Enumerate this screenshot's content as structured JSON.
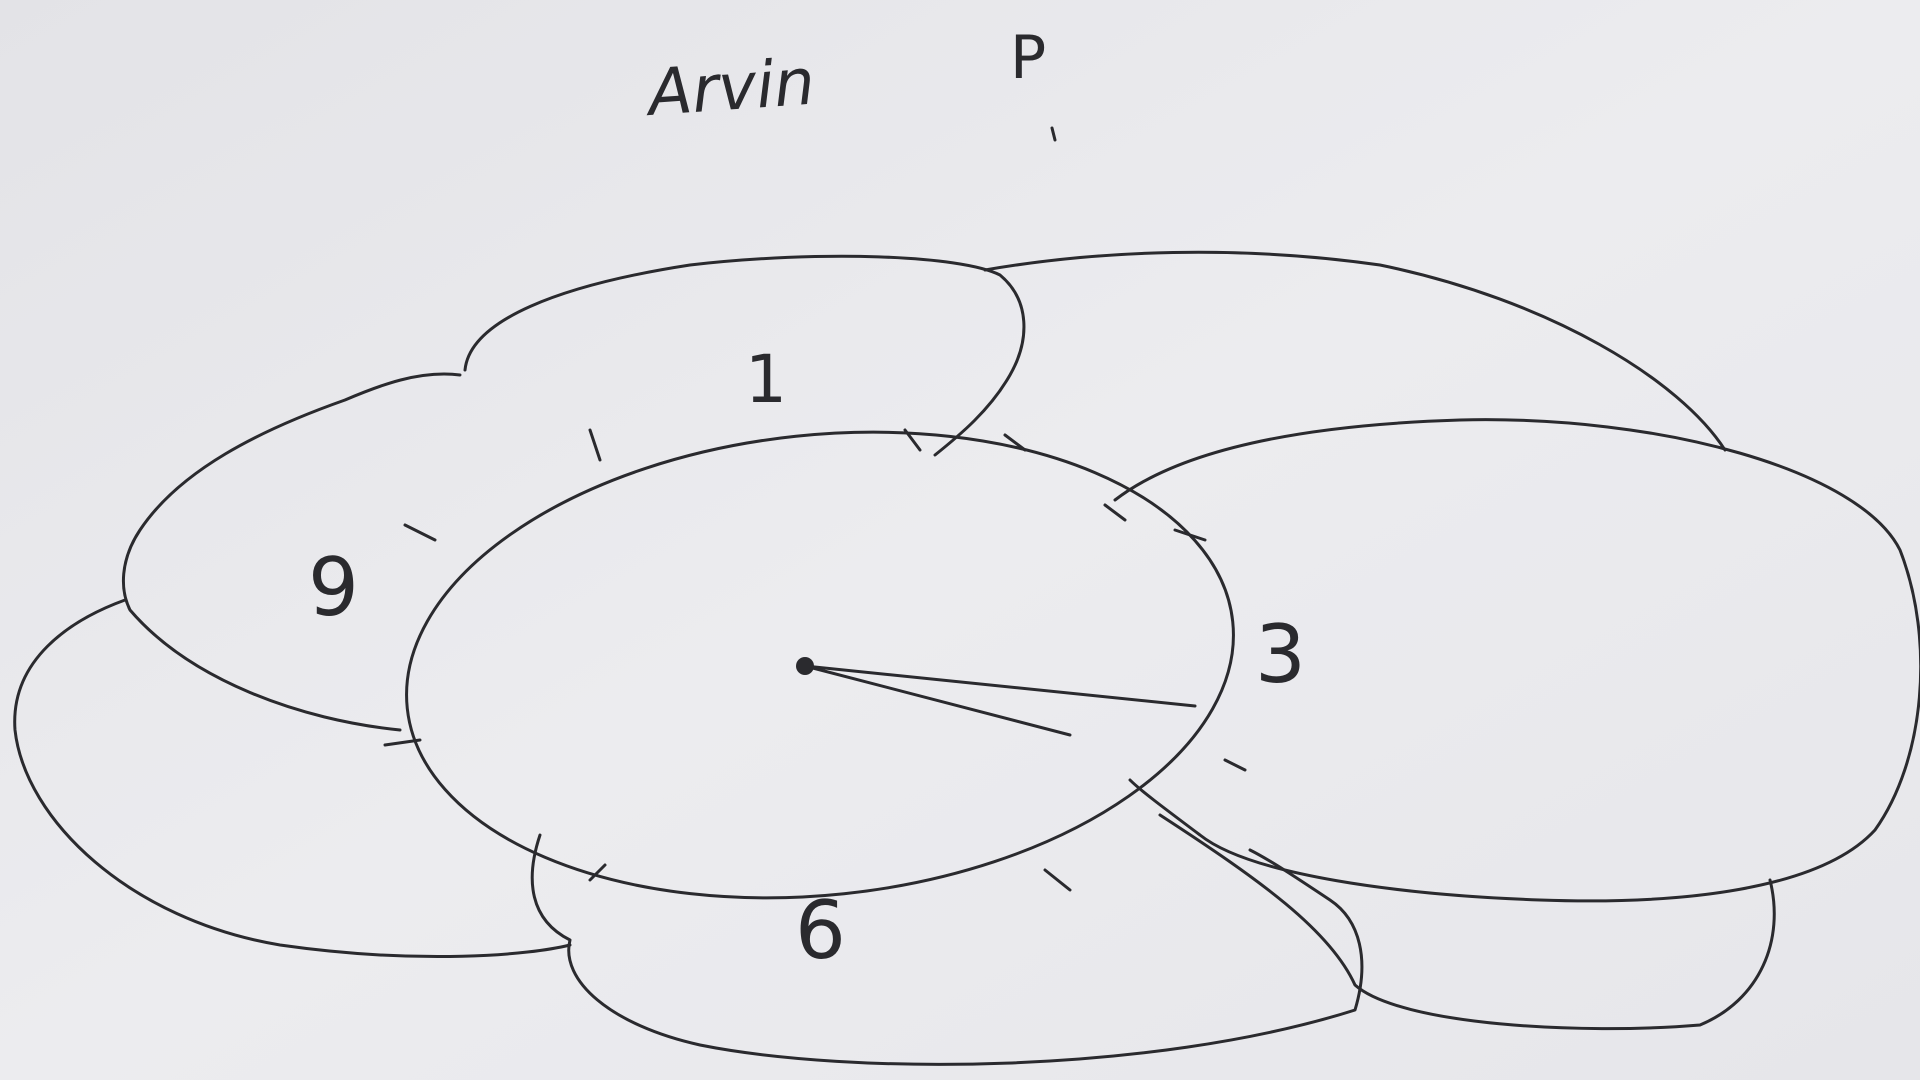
{
  "header": {
    "name": "Arvin",
    "mark": "P"
  },
  "clock": {
    "numbers": {
      "top": "1",
      "left": "9",
      "right": "3",
      "bottom": "6"
    }
  }
}
